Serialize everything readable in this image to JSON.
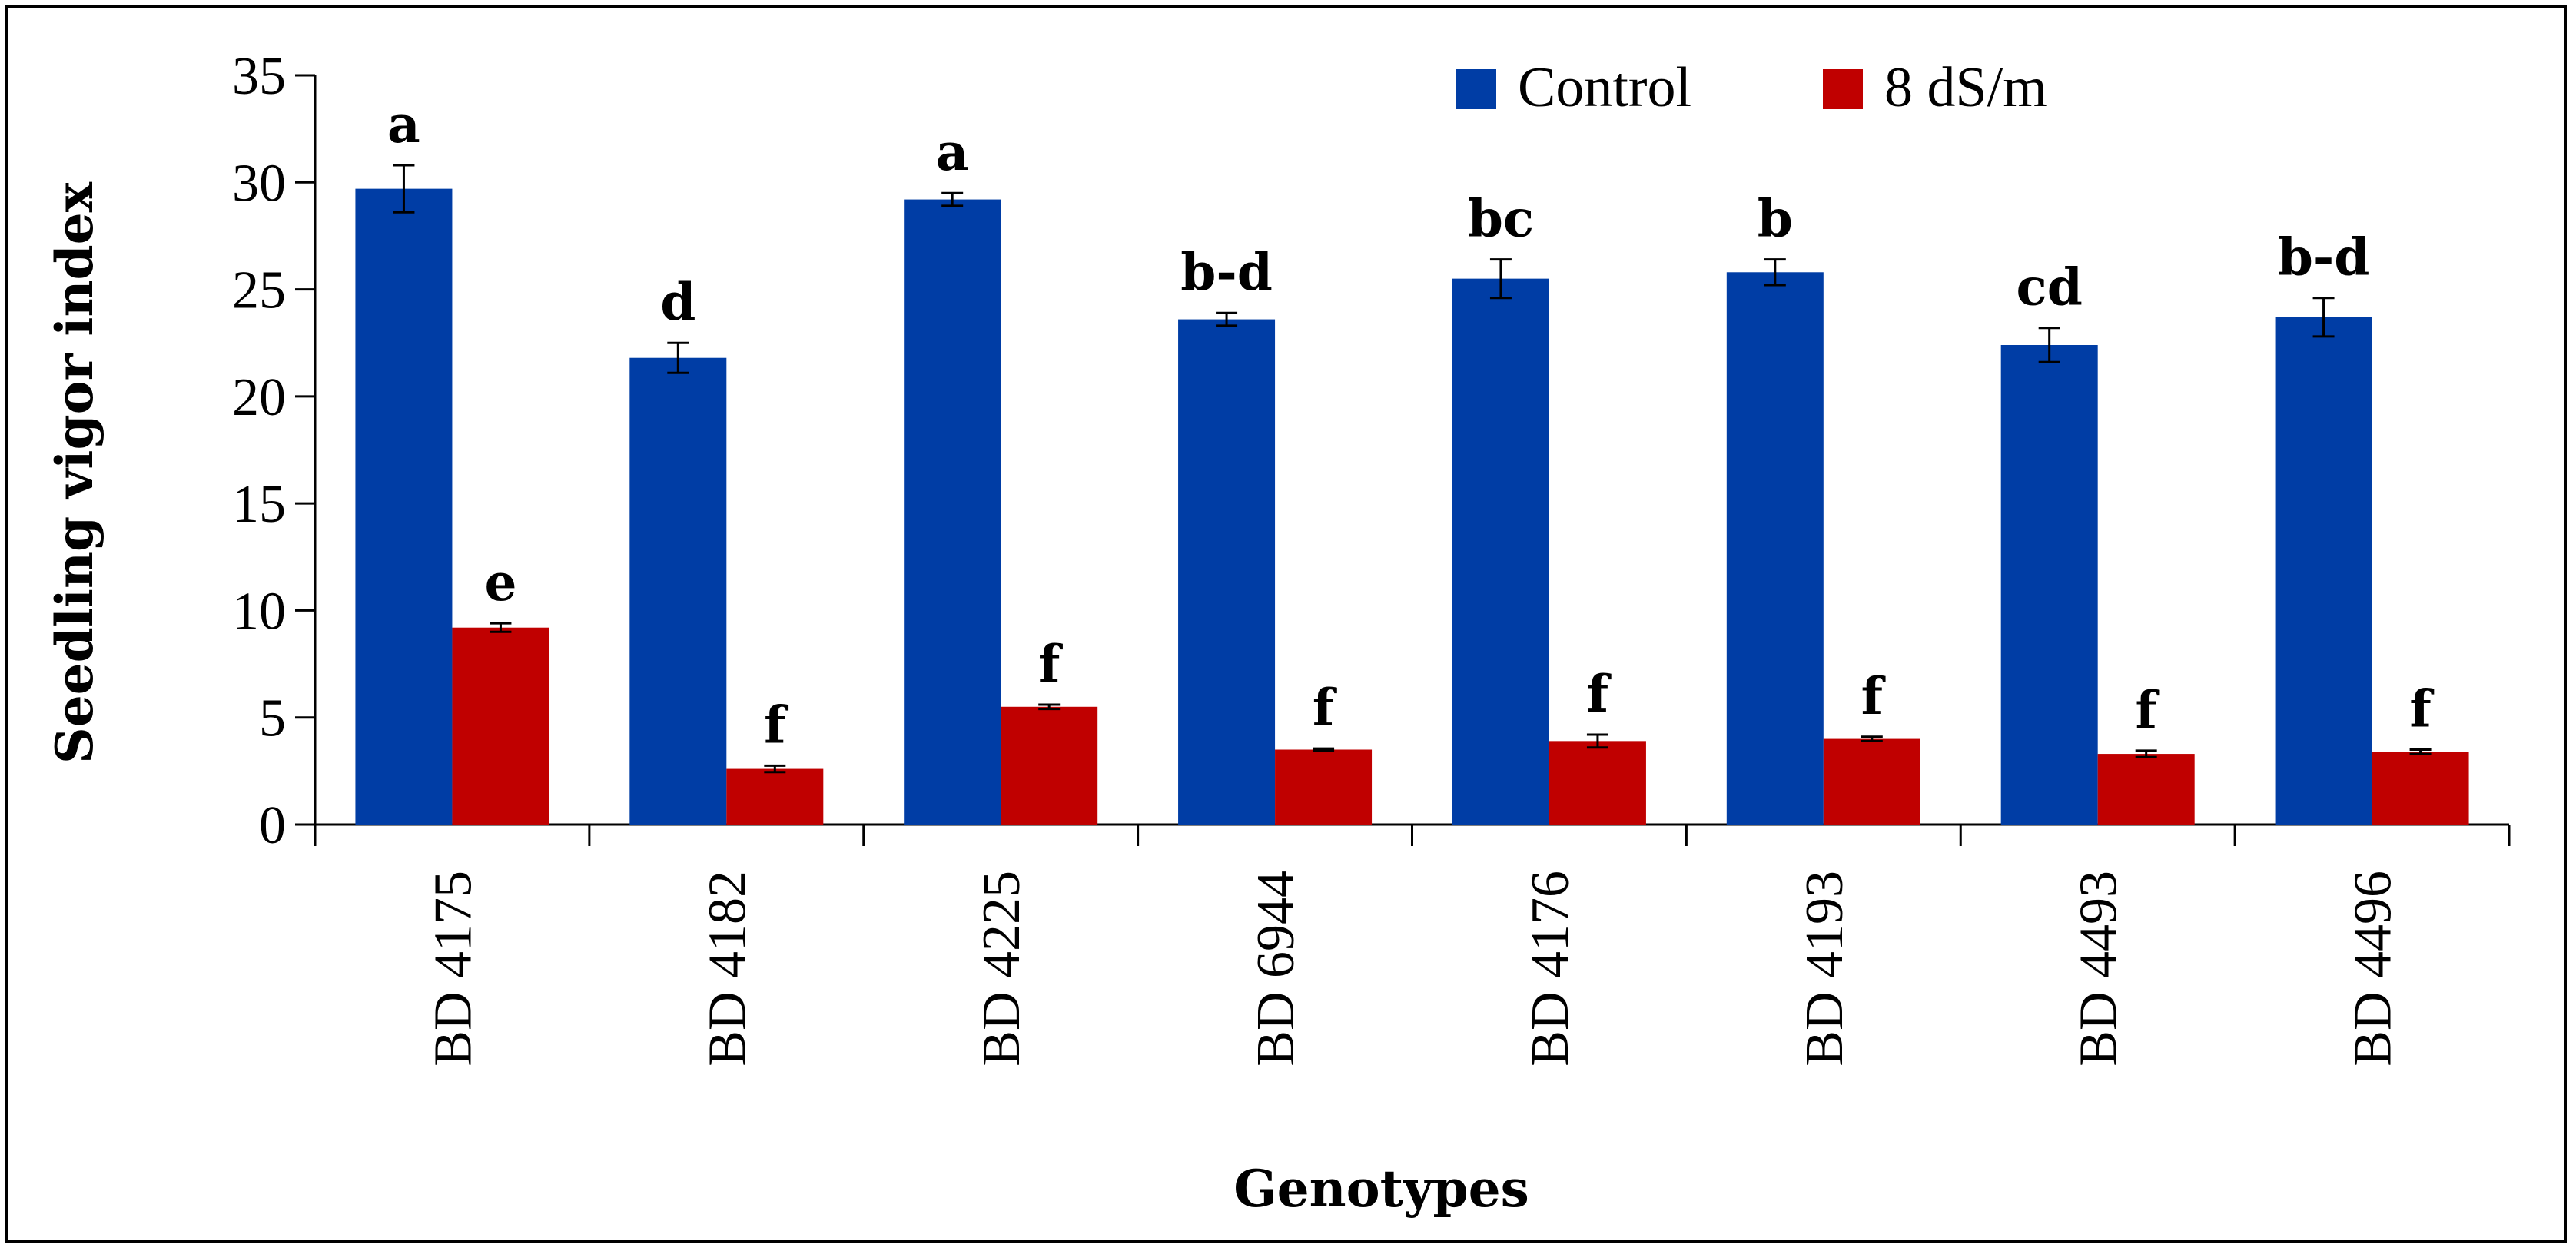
{
  "chart_data": {
    "type": "bar",
    "title": "",
    "xlabel": "Genotypes",
    "ylabel": "Seedling vigor index",
    "ylim": [
      0,
      35
    ],
    "yticks": [
      0,
      5,
      10,
      15,
      20,
      25,
      30,
      35
    ],
    "grid": false,
    "legend_position": "top-right",
    "categories": [
      "BD 4175",
      "BD 4182",
      "BD 4225",
      "BD 6944",
      "BD 4176",
      "BD 4193",
      "BD 4493",
      "BD 4496"
    ],
    "series": [
      {
        "name": "Control",
        "color": "#003da5",
        "values": [
          29.7,
          21.8,
          29.2,
          23.6,
          25.5,
          25.8,
          22.4,
          23.7
        ],
        "errors": [
          1.1,
          0.7,
          0.3,
          0.3,
          0.9,
          0.6,
          0.8,
          0.9
        ],
        "labels": [
          "a",
          "d",
          "a",
          "b-d",
          "bc",
          "b",
          "cd",
          "b-d"
        ]
      },
      {
        "name": "8 dS/m",
        "color": "#c00000",
        "values": [
          9.2,
          2.6,
          5.5,
          3.5,
          3.9,
          4.0,
          3.3,
          3.4
        ],
        "errors": [
          0.2,
          0.15,
          0.1,
          0.05,
          0.3,
          0.1,
          0.15,
          0.1
        ],
        "labels": [
          "e",
          "f",
          "f",
          "f",
          "f",
          "f",
          "f",
          "f"
        ]
      }
    ]
  }
}
